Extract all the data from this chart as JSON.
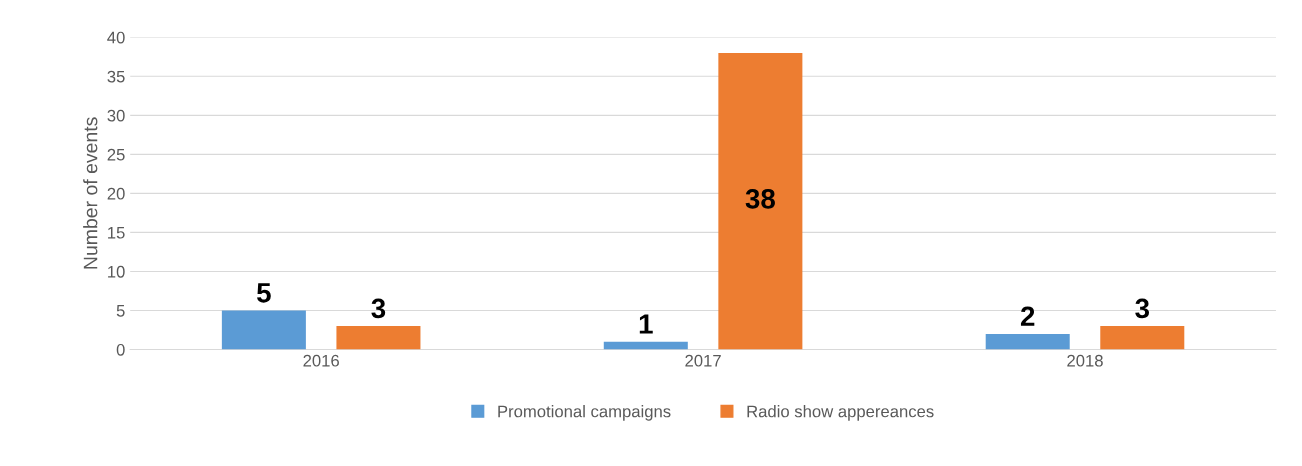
{
  "chart_data": {
    "type": "bar",
    "ylabel": "Number of events",
    "categories": [
      "2016",
      "2017",
      "2018"
    ],
    "series": [
      {
        "name": "Promotional campaigns",
        "color": "#5b9bd5",
        "values": [
          5,
          1,
          2
        ]
      },
      {
        "name": "Radio show appereances",
        "color": "#ed7d31",
        "values": [
          3,
          38,
          3
        ]
      }
    ],
    "ylim": [
      0,
      40
    ],
    "yticks": [
      0,
      5,
      10,
      15,
      20,
      25,
      30,
      35,
      40
    ],
    "grid": "y",
    "legend": "bottom",
    "data_labels": true
  }
}
